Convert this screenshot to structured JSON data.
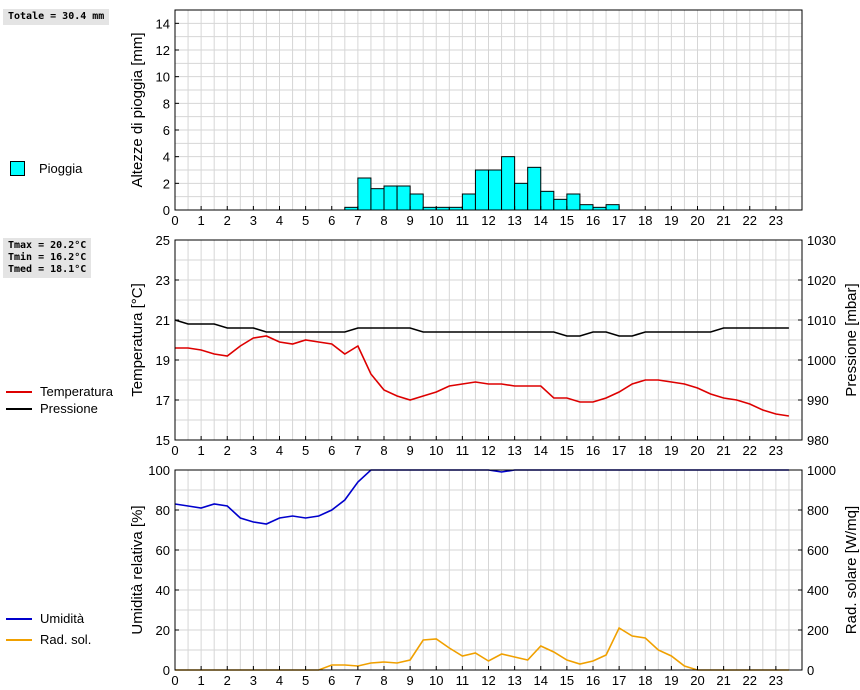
{
  "summaries": {
    "rain_total": "Totale = 30.4 mm",
    "temp_stats": [
      "Tmax = 20.2°C",
      "Tmin = 16.2°C",
      "Tmed = 18.1°C"
    ]
  },
  "legend": {
    "rain": "Pioggia",
    "temperature": "Temperatura",
    "pressure": "Pressione",
    "humidity": "Umidità",
    "solar": "Rad. sol."
  },
  "colors": {
    "rain": "#00ffff",
    "temperature": "#dd0000",
    "pressure": "#000000",
    "humidity": "#0000cc",
    "solar": "#f0a000"
  },
  "chart_data": [
    {
      "type": "bar",
      "ylabel": "Altezze di pioggia [mm]",
      "xlim": [
        0,
        24
      ],
      "ylim": [
        0,
        15
      ],
      "xticks": [
        "0",
        "1",
        "2",
        "3",
        "4",
        "5",
        "6",
        "7",
        "8",
        "9",
        "10",
        "11",
        "12",
        "13",
        "14",
        "15",
        "16",
        "17",
        "18",
        "19",
        "20",
        "21",
        "22",
        "23"
      ],
      "yticks": [
        "0",
        "2",
        "4",
        "6",
        "8",
        "10",
        "12",
        "14"
      ],
      "grid": true,
      "series": [
        {
          "name": "Pioggia",
          "x": [
            6.75,
            7.25,
            7.75,
            8.25,
            8.75,
            9.25,
            9.75,
            10.25,
            10.75,
            11.25,
            11.75,
            12.25,
            12.75,
            13.25,
            13.75,
            14.25,
            14.75,
            15.25,
            15.75,
            16.25,
            16.75
          ],
          "values": [
            0.2,
            2.4,
            1.6,
            1.8,
            1.8,
            1.2,
            0.2,
            0.2,
            0.2,
            1.2,
            3.0,
            3.0,
            4.0,
            2.0,
            3.2,
            1.4,
            0.8,
            1.2,
            0.4,
            0.2,
            0.4
          ]
        }
      ]
    },
    {
      "type": "line",
      "ylabel": "Temperatura [°C]",
      "y2label": "Pressione [mbar]",
      "xlim": [
        0,
        24
      ],
      "ylim": [
        15,
        25
      ],
      "y2lim": [
        980,
        1030
      ],
      "xticks": [
        "0",
        "1",
        "2",
        "3",
        "4",
        "5",
        "6",
        "7",
        "8",
        "9",
        "10",
        "11",
        "12",
        "13",
        "14",
        "15",
        "16",
        "17",
        "18",
        "19",
        "20",
        "21",
        "22",
        "23"
      ],
      "yticks": [
        "15",
        "17",
        "19",
        "21",
        "23",
        "25"
      ],
      "y2ticks": [
        "980",
        "990",
        "1000",
        "1010",
        "1020",
        "1030"
      ],
      "grid": true,
      "series": [
        {
          "name": "Temperatura",
          "x": [
            0,
            0.5,
            1,
            1.5,
            2,
            2.5,
            3,
            3.5,
            4,
            4.5,
            5,
            5.5,
            6,
            6.5,
            7,
            7.5,
            8,
            8.5,
            9,
            9.5,
            10,
            10.5,
            11,
            11.5,
            12,
            12.5,
            13,
            13.5,
            14,
            14.5,
            15,
            15.5,
            16,
            16.5,
            17,
            17.5,
            18,
            18.5,
            19,
            19.5,
            20,
            20.5,
            21,
            21.5,
            22,
            22.5,
            23,
            23.5
          ],
          "values": [
            19.6,
            19.6,
            19.5,
            19.3,
            19.2,
            19.7,
            20.1,
            20.2,
            19.9,
            19.8,
            20.0,
            19.9,
            19.8,
            19.3,
            19.7,
            18.3,
            17.5,
            17.2,
            17.0,
            17.2,
            17.4,
            17.7,
            17.8,
            17.9,
            17.8,
            17.8,
            17.7,
            17.7,
            17.7,
            17.1,
            17.1,
            16.9,
            16.9,
            17.1,
            17.4,
            17.8,
            18.0,
            18.0,
            17.9,
            17.8,
            17.6,
            17.3,
            17.1,
            17.0,
            16.8,
            16.5,
            16.3,
            16.2
          ]
        },
        {
          "name": "Pressione",
          "axis": "right",
          "x": [
            0,
            0.5,
            1,
            1.5,
            2,
            2.5,
            3,
            3.5,
            4,
            4.5,
            5,
            5.5,
            6,
            6.5,
            7,
            7.5,
            8,
            8.5,
            9,
            9.5,
            10,
            10.5,
            11,
            11.5,
            12,
            12.5,
            13,
            13.5,
            14,
            14.5,
            15,
            15.5,
            16,
            16.5,
            17,
            17.5,
            18,
            18.5,
            19,
            19.5,
            20,
            20.5,
            21,
            21.5,
            22,
            22.5,
            23,
            23.5
          ],
          "values": [
            1010,
            1009,
            1009,
            1009,
            1008,
            1008,
            1008,
            1007,
            1007,
            1007,
            1007,
            1007,
            1007,
            1007,
            1008,
            1008,
            1008,
            1008,
            1008,
            1007,
            1007,
            1007,
            1007,
            1007,
            1007,
            1007,
            1007,
            1007,
            1007,
            1007,
            1006,
            1006,
            1007,
            1007,
            1006,
            1006,
            1007,
            1007,
            1007,
            1007,
            1007,
            1007,
            1008,
            1008,
            1008,
            1008,
            1008,
            1008
          ]
        }
      ]
    },
    {
      "type": "line",
      "ylabel": "Umidità relativa [%]",
      "y2label": "Rad. solare [W/mq]",
      "xlim": [
        0,
        24
      ],
      "ylim": [
        0,
        100
      ],
      "y2lim": [
        0,
        1000
      ],
      "xticks": [
        "0",
        "1",
        "2",
        "3",
        "4",
        "5",
        "6",
        "7",
        "8",
        "9",
        "10",
        "11",
        "12",
        "13",
        "14",
        "15",
        "16",
        "17",
        "18",
        "19",
        "20",
        "21",
        "22",
        "23"
      ],
      "yticks": [
        "0",
        "20",
        "40",
        "60",
        "80",
        "100"
      ],
      "y2ticks": [
        "0",
        "200",
        "400",
        "600",
        "800",
        "1000"
      ],
      "grid": true,
      "series": [
        {
          "name": "Umidità",
          "x": [
            0,
            0.5,
            1,
            1.5,
            2,
            2.5,
            3,
            3.5,
            4,
            4.5,
            5,
            5.5,
            6,
            6.5,
            7,
            7.5,
            8,
            9,
            10,
            11,
            12,
            12.5,
            13,
            14,
            15,
            16,
            17,
            18,
            19,
            20,
            21,
            22,
            23,
            23.5
          ],
          "values": [
            83,
            82,
            81,
            83,
            82,
            76,
            74,
            73,
            76,
            77,
            76,
            77,
            80,
            85,
            94,
            100,
            100,
            100,
            100,
            100,
            100,
            99,
            100,
            100,
            100,
            100,
            100,
            100,
            100,
            100,
            100,
            100,
            100,
            100
          ]
        },
        {
          "name": "Rad. sol.",
          "axis": "right",
          "x": [
            0,
            1,
            2,
            3,
            4,
            5,
            5.5,
            6,
            6.5,
            7,
            7.5,
            8,
            8.5,
            9,
            9.5,
            10,
            10.5,
            11,
            11.5,
            12,
            12.5,
            13,
            13.5,
            14,
            14.5,
            15,
            15.5,
            16,
            16.5,
            17,
            17.5,
            18,
            18.5,
            19,
            19.5,
            20,
            20.5,
            21,
            22,
            23,
            23.5
          ],
          "values": [
            0,
            0,
            0,
            0,
            0,
            0,
            0,
            25,
            25,
            20,
            35,
            40,
            35,
            50,
            150,
            155,
            110,
            70,
            85,
            45,
            80,
            65,
            50,
            120,
            90,
            50,
            30,
            45,
            75,
            210,
            170,
            160,
            100,
            70,
            20,
            0,
            0,
            0,
            0,
            0,
            0
          ]
        }
      ]
    }
  ]
}
